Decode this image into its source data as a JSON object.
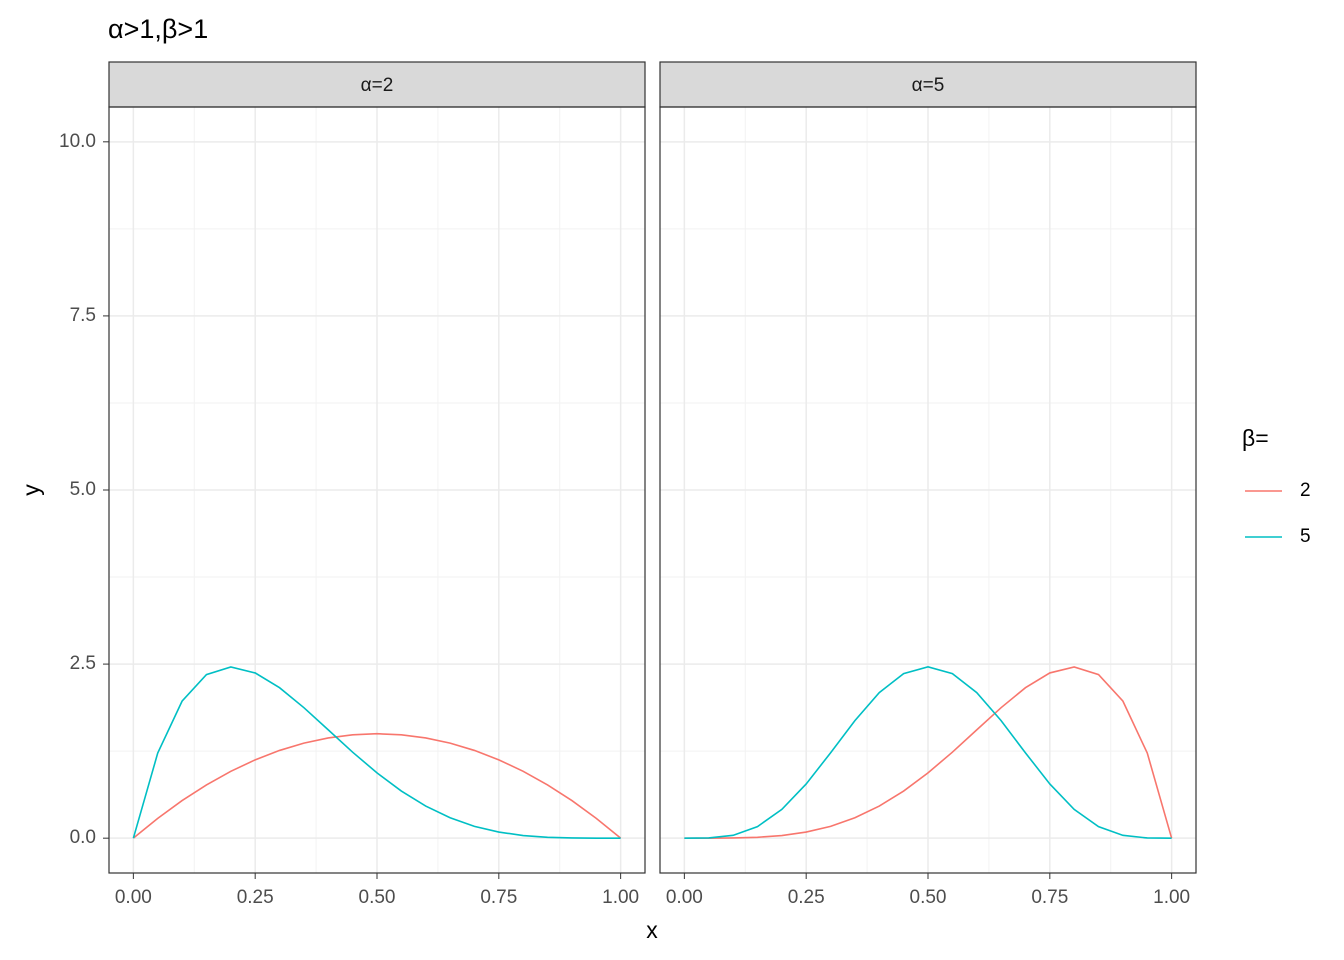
{
  "chart_data": {
    "type": "line",
    "title": "α>1,β>1",
    "xlabel": "x",
    "ylabel": "y",
    "legend_title": "β=",
    "x": [
      0,
      0.05,
      0.1,
      0.15,
      0.2,
      0.25,
      0.3,
      0.35,
      0.4,
      0.45,
      0.5,
      0.55,
      0.6,
      0.65,
      0.7,
      0.75,
      0.8,
      0.85,
      0.9,
      0.95,
      1
    ],
    "xlim": [
      -0.05,
      1.05
    ],
    "xticks": [
      {
        "value": 0,
        "label": "0.00"
      },
      0.25,
      {
        "value": 0.5,
        "label": "0.50"
      },
      0.75,
      {
        "value": 1,
        "label": "1.00"
      }
    ],
    "ylim": [
      -0.5,
      10.5
    ],
    "yticks": [
      {
        "value": 0,
        "label": "0.0"
      },
      2.5,
      {
        "value": 5,
        "label": "5.0"
      },
      7.5,
      {
        "value": 10,
        "label": "10.0"
      }
    ],
    "grid": true,
    "minor_grid": true,
    "panels": [
      {
        "strip": "α=2",
        "series": [
          {
            "name": "2",
            "color": "#F8766D",
            "values": [
              0,
              0.285,
              0.54,
              0.765,
              0.96,
              1.125,
              1.26,
              1.365,
              1.44,
              1.485,
              1.5,
              1.485,
              1.44,
              1.365,
              1.26,
              1.125,
              0.96,
              0.765,
              0.54,
              0.285,
              0
            ]
          },
          {
            "name": "5",
            "color": "#00BFC4",
            "values": [
              0,
              1.222,
              1.968,
              2.349,
              2.458,
              2.373,
              2.161,
              1.874,
              1.555,
              1.235,
              0.938,
              0.677,
              0.461,
              0.293,
              0.17,
              0.088,
              0.038,
              0.013,
              0.003,
              0,
              0
            ]
          }
        ]
      },
      {
        "strip": "α=5",
        "series": [
          {
            "name": "2",
            "color": "#F8766D",
            "values": [
              0,
              0,
              0.003,
              0.013,
              0.038,
              0.088,
              0.17,
              0.293,
              0.461,
              0.677,
              0.938,
              1.235,
              1.555,
              1.874,
              2.161,
              2.373,
              2.458,
              2.349,
              1.968,
              1.222,
              0
            ]
          },
          {
            "name": "5",
            "color": "#00BFC4",
            "values": [
              0,
              0.003,
              0.041,
              0.166,
              0.413,
              0.779,
              1.225,
              1.688,
              2.09,
              2.364,
              2.461,
              2.364,
              2.09,
              1.688,
              1.225,
              0.779,
              0.413,
              0.166,
              0.041,
              0.003,
              0
            ]
          }
        ]
      }
    ]
  }
}
